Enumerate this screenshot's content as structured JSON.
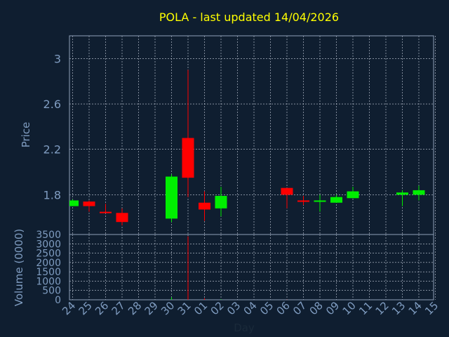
{
  "chart_data": {
    "type": "candlestick",
    "title": "POLA - last updated 14/04/2026",
    "xlabel": "Day",
    "price_panel": {
      "ylabel": "Price",
      "ylim": [
        1.45,
        3.2
      ],
      "yticks": [
        1.8,
        2.2,
        2.6,
        3
      ],
      "ytick_labels": [
        "1.8",
        "2.2",
        "2.6",
        "3"
      ]
    },
    "volume_panel": {
      "ylabel": "Volume (0000)",
      "ylim": [
        0,
        3500
      ],
      "yticks": [
        0,
        500,
        1000,
        1500,
        2000,
        2500,
        3000,
        3500
      ],
      "ytick_labels": [
        "0",
        "500",
        "1000",
        "1500",
        "2000",
        "2500",
        "3000",
        "3500"
      ]
    },
    "x_tick_labels": [
      "24",
      "25",
      "26",
      "27",
      "28",
      "29",
      "30",
      "31",
      "01",
      "02",
      "03",
      "04",
      "05",
      "06",
      "07",
      "08",
      "09",
      "10",
      "11",
      "12",
      "13",
      "14",
      "15"
    ],
    "up_color": "#00ee00",
    "down_color": "#ff0000",
    "candles": [
      {
        "day": "24",
        "open": 1.7,
        "high": 1.76,
        "low": 1.7,
        "close": 1.75,
        "volume": 0
      },
      {
        "day": "25",
        "open": 1.74,
        "high": 1.75,
        "low": 1.65,
        "close": 1.7,
        "volume": 0
      },
      {
        "day": "26",
        "open": 1.65,
        "high": 1.72,
        "low": 1.64,
        "close": 1.64,
        "volume": 0
      },
      {
        "day": "27",
        "open": 1.64,
        "high": 1.68,
        "low": 1.53,
        "close": 1.56,
        "volume": 0
      },
      {
        "day": "30",
        "open": 1.59,
        "high": 1.98,
        "low": 1.56,
        "close": 1.96,
        "volume": 130
      },
      {
        "day": "31",
        "open": 2.3,
        "high": 2.9,
        "low": 1.78,
        "close": 1.95,
        "volume": 3400
      },
      {
        "day": "01",
        "open": 1.73,
        "high": 1.83,
        "low": 1.57,
        "close": 1.67,
        "volume": 80
      },
      {
        "day": "02",
        "open": 1.68,
        "high": 1.87,
        "low": 1.61,
        "close": 1.79,
        "volume": 30
      },
      {
        "day": "06",
        "open": 1.86,
        "high": 1.86,
        "low": 1.68,
        "close": 1.8,
        "volume": 10
      },
      {
        "day": "07",
        "open": 1.75,
        "high": 1.79,
        "low": 1.71,
        "close": 1.74,
        "volume": 0
      },
      {
        "day": "08",
        "open": 1.74,
        "high": 1.8,
        "low": 1.65,
        "close": 1.75,
        "volume": 0
      },
      {
        "day": "09",
        "open": 1.73,
        "high": 1.8,
        "low": 1.73,
        "close": 1.78,
        "volume": 0
      },
      {
        "day": "10",
        "open": 1.77,
        "high": 1.87,
        "low": 1.77,
        "close": 1.83,
        "volume": 0
      },
      {
        "day": "13",
        "open": 1.8,
        "high": 1.84,
        "low": 1.7,
        "close": 1.82,
        "volume": 0
      },
      {
        "day": "14",
        "open": 1.8,
        "high": 1.88,
        "low": 1.75,
        "close": 1.84,
        "volume": 0
      }
    ]
  }
}
